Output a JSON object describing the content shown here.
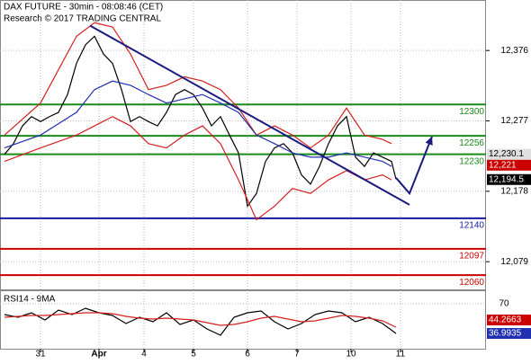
{
  "chart_data": {
    "type": "price",
    "title": "DAX FUTURE - 30min - 08:08:46 (CET)",
    "subtitle": "Research © 2017 TRADING CENTRAL",
    "xlim": [
      -1,
      107
    ],
    "xticks": [
      {
        "value": 8,
        "label": "31"
      },
      {
        "value": 21,
        "label": "Apr"
      },
      {
        "value": 31,
        "label": "4"
      },
      {
        "value": 42,
        "label": "5"
      },
      {
        "value": 54,
        "label": "6"
      },
      {
        "value": 65,
        "label": "7"
      },
      {
        "value": 77,
        "label": "10"
      },
      {
        "value": 88,
        "label": "11"
      }
    ],
    "ylim": [
      12040,
      12447
    ],
    "yticks": [
      {
        "value": 12376,
        "label": "12,376"
      },
      {
        "value": 12277,
        "label": "12,277"
      },
      {
        "value": 12178,
        "label": "12,178"
      },
      {
        "value": 12079,
        "label": "12,079"
      }
    ],
    "grid": true,
    "series": [
      {
        "color": "#000000",
        "x": [
          0,
          2,
          4,
          6,
          8,
          10,
          12,
          14,
          16,
          18,
          20,
          22,
          24,
          26,
          28,
          30,
          32,
          34,
          36,
          38,
          40,
          42,
          44,
          46,
          48,
          50,
          52,
          54,
          56,
          58,
          60,
          62,
          64,
          66,
          68,
          70,
          72,
          74,
          76,
          78,
          80,
          82,
          84,
          86,
          87
        ],
        "values": [
          12230,
          12245,
          12270,
          12283,
          12276,
          12283,
          12289,
          12314,
          12358,
          12384,
          12396,
          12371,
          12358,
          12321,
          12276,
          12283,
          12276,
          12270,
          12289,
          12314,
          12321,
          12314,
          12295,
          12270,
          12283,
          12257,
          12232,
          12157,
          12175,
          12220,
          12239,
          12245,
          12232,
          12201,
          12188,
          12213,
          12245,
          12270,
          12283,
          12226,
          12213,
          12232,
          12226,
          12220,
          12195
        ]
      },
      {
        "color": "#d42020",
        "x": [
          0,
          8,
          16,
          20,
          24,
          28,
          32,
          36,
          40,
          44,
          48,
          52,
          56,
          60,
          64,
          68,
          72,
          76,
          80,
          84,
          86
        ],
        "values": [
          12257,
          12302,
          12396,
          12415,
          12409,
          12371,
          12321,
          12327,
          12339,
          12333,
          12321,
          12295,
          12257,
          12270,
          12257,
          12239,
          12257,
          12295,
          12257,
          12251,
          12245
        ]
      },
      {
        "color": "#d42020",
        "x": [
          0,
          8,
          16,
          20,
          24,
          28,
          32,
          36,
          40,
          44,
          48,
          52,
          56,
          60,
          64,
          68,
          72,
          76,
          80,
          84,
          86
        ],
        "values": [
          12220,
          12239,
          12257,
          12270,
          12283,
          12270,
          12245,
          12239,
          12257,
          12270,
          12245,
          12194,
          12138,
          12157,
          12182,
          12175,
          12194,
          12207,
          12194,
          12201,
          12194
        ]
      },
      {
        "color": "#2030b0",
        "x": [
          0,
          8,
          16,
          20,
          24,
          28,
          32,
          36,
          40,
          44,
          48,
          52,
          56,
          60,
          64,
          68,
          72,
          76,
          80,
          84,
          86
        ],
        "values": [
          12239,
          12257,
          12289,
          12321,
          12333,
          12327,
          12314,
          12302,
          12308,
          12314,
          12302,
          12289,
          12257,
          12245,
          12232,
          12226,
          12226,
          12232,
          12226,
          12220,
          12213
        ]
      },
      {
        "color": "#1a1a80",
        "x": [
          19,
          90
        ],
        "values": [
          12411,
          12159
        ]
      },
      {
        "color": "#1a1a80",
        "x": [
          87,
          90,
          95
        ],
        "values": [
          12197,
          12175,
          12255
        ]
      }
    ],
    "levels": [
      12300,
      12256,
      12230,
      12140,
      12097,
      12060
    ],
    "level_colors": [
      "#1a8a1a",
      "#1a8a1a",
      "#1a8a1a",
      "#1a1aa0",
      "#cc0000",
      "#cc0000"
    ],
    "price_labels": [
      {
        "value": 12230.1,
        "label": "12,230.1",
        "color": "#e0e0e0"
      },
      {
        "value": 12221,
        "label": "12,221",
        "color": "#cc0000"
      },
      {
        "value": 12194.5,
        "label": "12,194.5",
        "color": "#000000"
      }
    ],
    "rsi": {
      "title": "RSI14 - 9MA",
      "ylim": [
        20,
        85
      ],
      "yticks": [
        70
      ],
      "series": [
        {
          "color": "#000000",
          "x": [
            0,
            3,
            6,
            9,
            12,
            15,
            18,
            21,
            24,
            27,
            30,
            33,
            36,
            39,
            42,
            45,
            48,
            51,
            54,
            57,
            60,
            63,
            66,
            69,
            72,
            75,
            78,
            81,
            84,
            87
          ],
          "values": [
            58,
            55,
            60,
            52,
            63,
            58,
            65,
            60,
            57,
            48,
            55,
            50,
            60,
            47,
            52,
            42,
            35,
            55,
            60,
            62,
            50,
            42,
            48,
            58,
            62,
            60,
            50,
            55,
            48,
            37
          ]
        },
        {
          "color": "#d42020",
          "x": [
            0,
            3,
            6,
            9,
            12,
            15,
            18,
            21,
            24,
            27,
            30,
            33,
            36,
            39,
            42,
            45,
            48,
            51,
            54,
            57,
            60,
            63,
            66,
            69,
            72,
            75,
            78,
            81,
            84,
            87
          ],
          "values": [
            55,
            56,
            57,
            57,
            58,
            59,
            60,
            60,
            59,
            56,
            54,
            53,
            54,
            53,
            52,
            49,
            46,
            47,
            50,
            54,
            56,
            53,
            50,
            51,
            54,
            57,
            56,
            54,
            51,
            44
          ]
        }
      ],
      "value_labels": [
        {
          "value": 44.2663,
          "label": "44.2663",
          "color": "#cc0000"
        },
        {
          "value": 36.9935,
          "label": "36.9935",
          "color": "#2030b0"
        }
      ]
    }
  }
}
